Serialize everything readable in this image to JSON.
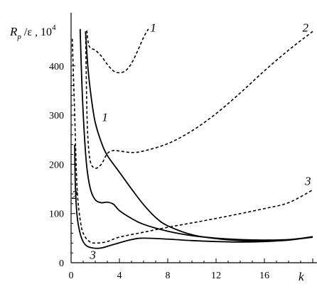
{
  "chart_data": {
    "type": "line",
    "y_label": {
      "main": "R",
      "subscript": "p",
      "rest": " /ε , 10",
      "superscript": "4"
    },
    "x_label": "k",
    "xlim": [
      0,
      20
    ],
    "ylim": [
      0,
      460
    ],
    "x_ticks": [
      0,
      4,
      8,
      12,
      16
    ],
    "y_ticks": [
      0,
      100,
      200,
      300,
      400
    ],
    "series": [
      {
        "name": "1",
        "style": "dashed",
        "points": [
          [
            1.3,
            472
          ],
          [
            1.5,
            440
          ],
          [
            2,
            432
          ],
          [
            2.5,
            420
          ],
          [
            3,
            403
          ],
          [
            3.5,
            390
          ],
          [
            4,
            386
          ],
          [
            4.5,
            390
          ],
          [
            5,
            405
          ],
          [
            5.5,
            430
          ],
          [
            6,
            458
          ],
          [
            6.4,
            475
          ]
        ]
      },
      {
        "name": "2",
        "style": "dashed",
        "points": [
          [
            1.2,
            470
          ],
          [
            1.3,
            320
          ],
          [
            1.4,
            250
          ],
          [
            1.6,
            205
          ],
          [
            2,
            192
          ],
          [
            2.5,
            200
          ],
          [
            3,
            222
          ],
          [
            3.5,
            228
          ],
          [
            4,
            227
          ],
          [
            5,
            224
          ],
          [
            6,
            227
          ],
          [
            8,
            242
          ],
          [
            10,
            268
          ],
          [
            12,
            303
          ],
          [
            14,
            345
          ],
          [
            16,
            390
          ],
          [
            18,
            432
          ],
          [
            20,
            470
          ]
        ]
      },
      {
        "name": "3",
        "style": "dashed",
        "points": [
          [
            0.1,
            455
          ],
          [
            0.3,
            300
          ],
          [
            0.5,
            150
          ],
          [
            0.8,
            80
          ],
          [
            1.1,
            55
          ],
          [
            1.6,
            42
          ],
          [
            2.2,
            40
          ],
          [
            3,
            43
          ],
          [
            4,
            52
          ],
          [
            6,
            62
          ],
          [
            8,
            72
          ],
          [
            12,
            90
          ],
          [
            16,
            110
          ],
          [
            18,
            122
          ],
          [
            20,
            148
          ]
        ]
      },
      {
        "name": "1",
        "style": "solid",
        "points": [
          [
            1.2,
            470
          ],
          [
            1.4,
            395
          ],
          [
            1.7,
            330
          ],
          [
            2,
            285
          ],
          [
            2.5,
            245
          ],
          [
            3,
            218
          ],
          [
            4,
            184
          ],
          [
            5,
            150
          ],
          [
            6,
            118
          ],
          [
            7,
            92
          ],
          [
            8,
            75
          ],
          [
            10,
            57
          ],
          [
            12,
            49
          ],
          [
            14,
            45
          ],
          [
            16,
            44
          ],
          [
            18,
            46
          ],
          [
            20,
            53
          ]
        ]
      },
      {
        "name": "2",
        "style": "solid",
        "points": [
          [
            0.75,
            475
          ],
          [
            0.9,
            360
          ],
          [
            1.1,
            260
          ],
          [
            1.3,
            195
          ],
          [
            1.6,
            150
          ],
          [
            2,
            128
          ],
          [
            2.5,
            122
          ],
          [
            3,
            123
          ],
          [
            3.5,
            119
          ],
          [
            4,
            106
          ],
          [
            5,
            90
          ],
          [
            6,
            78
          ],
          [
            8,
            64
          ],
          [
            10,
            55
          ],
          [
            12,
            50
          ],
          [
            14,
            47
          ],
          [
            16,
            46
          ],
          [
            18,
            47
          ],
          [
            20,
            52
          ]
        ]
      },
      {
        "name": "3",
        "style": "solid",
        "points": [
          [
            0.3,
            240
          ],
          [
            0.35,
            160
          ],
          [
            0.5,
            95
          ],
          [
            0.8,
            55
          ],
          [
            1.2,
            36
          ],
          [
            1.8,
            30
          ],
          [
            2.5,
            30
          ],
          [
            3.5,
            37
          ],
          [
            5,
            47
          ],
          [
            6,
            50
          ],
          [
            8,
            48
          ],
          [
            10,
            45
          ],
          [
            12,
            43
          ],
          [
            14,
            42
          ],
          [
            16,
            43
          ],
          [
            18,
            46
          ],
          [
            20,
            52
          ]
        ]
      }
    ],
    "annotations": [
      {
        "text": "1",
        "x": 6.8,
        "y": 470
      },
      {
        "text": "2",
        "x": 19.4,
        "y": 470
      },
      {
        "text": "3",
        "x": 19.6,
        "y": 158
      },
      {
        "text": "1",
        "x": 2.8,
        "y": 288
      },
      {
        "text": "2",
        "x": 0.3,
        "y": 130
      },
      {
        "text": "3",
        "x": 1.8,
        "y": 8
      }
    ]
  }
}
